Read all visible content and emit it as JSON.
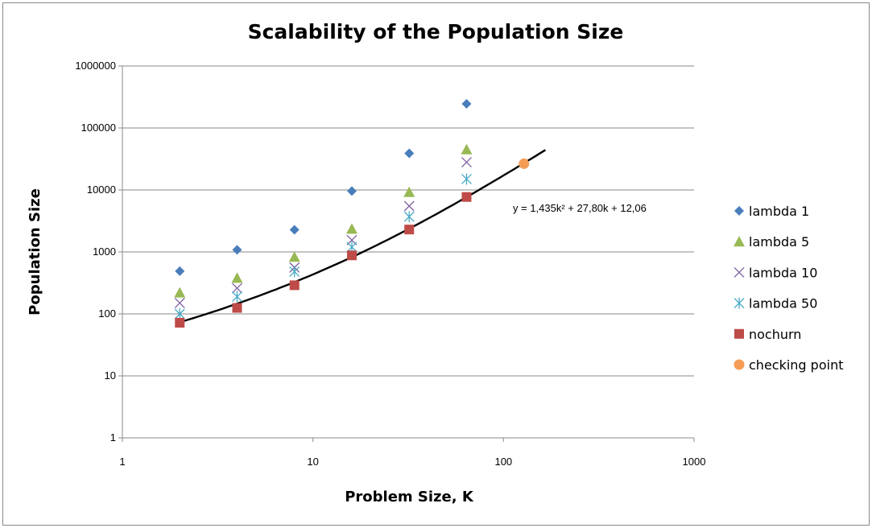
{
  "chart_data": {
    "type": "scatter",
    "title": "Scalability of the Population Size",
    "xlabel": "Problem Size, K",
    "ylabel": "Population Size",
    "x_scale": "log",
    "y_scale": "log",
    "xlim": [
      1,
      1000
    ],
    "ylim": [
      1,
      1000000
    ],
    "x_ticks": [
      "1",
      "10",
      "100",
      "1000"
    ],
    "y_ticks": [
      "1",
      "10",
      "100",
      "1000",
      "10000",
      "100000",
      "1000000"
    ],
    "grid": "horizontal",
    "legend_position": "right",
    "series": [
      {
        "name": "lambda 1",
        "marker": "diamond",
        "color": "#4a7ebb",
        "x": [
          2,
          4,
          8,
          16,
          32,
          64
        ],
        "y": [
          490,
          1080,
          2280,
          9600,
          39000,
          245000
        ]
      },
      {
        "name": "lambda 5",
        "marker": "triangle",
        "color": "#98b954",
        "x": [
          2,
          4,
          8,
          16,
          32,
          64
        ],
        "y": [
          220,
          380,
          830,
          2350,
          9200,
          45000
        ]
      },
      {
        "name": "lambda 10",
        "marker": "x",
        "color": "#7d60a0",
        "x": [
          2,
          4,
          8,
          16,
          32,
          64
        ],
        "y": [
          150,
          260,
          560,
          1550,
          5500,
          28000
        ]
      },
      {
        "name": "lambda 50",
        "marker": "asterisk",
        "color": "#46aac5",
        "x": [
          2,
          4,
          8,
          16,
          32,
          64
        ],
        "y": [
          100,
          190,
          480,
          1200,
          3700,
          15000
        ]
      },
      {
        "name": "nochurn",
        "marker": "square",
        "color": "#be4b48",
        "x": [
          2,
          4,
          8,
          16,
          32,
          64
        ],
        "y": [
          72,
          125,
          290,
          880,
          2300,
          7700
        ]
      },
      {
        "name": "checking point",
        "marker": "circle",
        "color": "#f59d56",
        "x": [
          128
        ],
        "y": [
          26500
        ]
      }
    ],
    "trendline": {
      "label": "y = 1,435k² + 27,80k + 12,06",
      "coefficients": [
        1.435,
        27.8,
        12.06
      ],
      "x_range": [
        2,
        166
      ],
      "color": "#000000"
    }
  }
}
